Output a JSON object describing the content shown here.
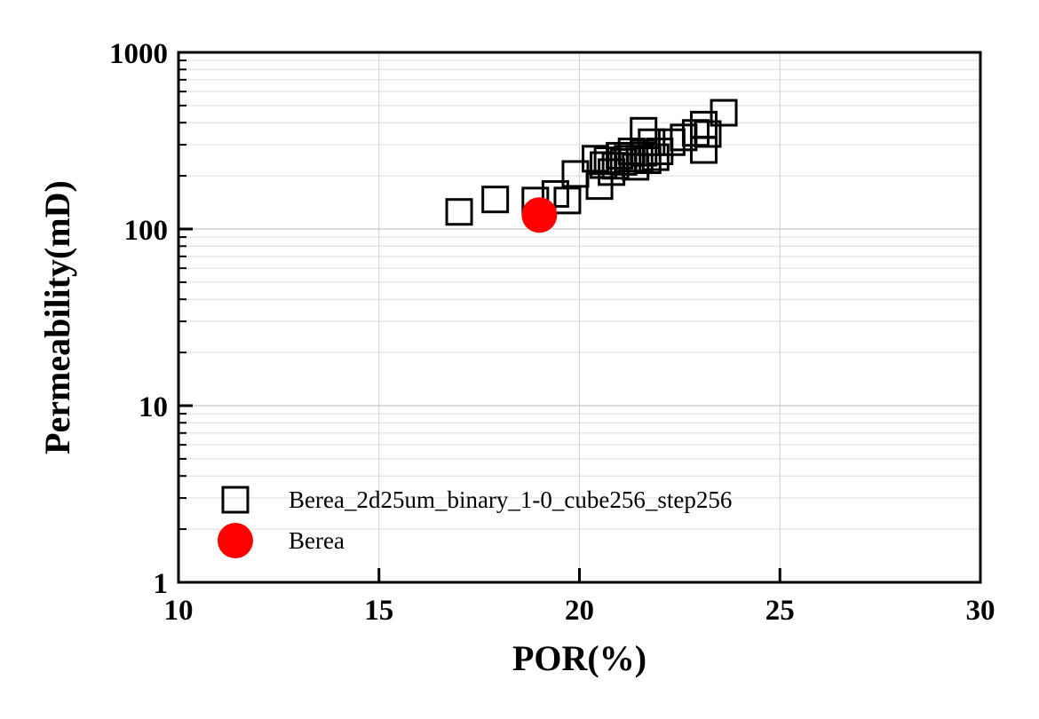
{
  "chart_data": {
    "type": "scatter",
    "xlabel": "POR(%)",
    "ylabel": "Permeability(mD)",
    "xlim": [
      10,
      30
    ],
    "ylim": [
      1,
      1000
    ],
    "y_scale": "log",
    "x_ticks": [
      "10",
      "15",
      "20",
      "25",
      "30"
    ],
    "y_ticks": [
      "1",
      "10",
      "100",
      "1000"
    ],
    "grid": true,
    "legend_position": "lower-left",
    "series": [
      {
        "name": "Berea_2d25um_binary_1-0_cube256_step256",
        "marker": "open-square",
        "color": "#000000",
        "points": [
          {
            "x": 17.0,
            "y": 125
          },
          {
            "x": 17.9,
            "y": 147
          },
          {
            "x": 18.9,
            "y": 145
          },
          {
            "x": 19.4,
            "y": 158
          },
          {
            "x": 19.7,
            "y": 145
          },
          {
            "x": 19.9,
            "y": 205
          },
          {
            "x": 20.4,
            "y": 250
          },
          {
            "x": 20.5,
            "y": 175
          },
          {
            "x": 20.6,
            "y": 230
          },
          {
            "x": 20.7,
            "y": 245
          },
          {
            "x": 20.8,
            "y": 210
          },
          {
            "x": 20.9,
            "y": 228
          },
          {
            "x": 21.0,
            "y": 260
          },
          {
            "x": 21.1,
            "y": 240
          },
          {
            "x": 21.2,
            "y": 250
          },
          {
            "x": 21.3,
            "y": 275
          },
          {
            "x": 21.4,
            "y": 225
          },
          {
            "x": 21.5,
            "y": 250
          },
          {
            "x": 21.6,
            "y": 270
          },
          {
            "x": 21.6,
            "y": 360
          },
          {
            "x": 21.7,
            "y": 245
          },
          {
            "x": 21.8,
            "y": 310
          },
          {
            "x": 21.9,
            "y": 255
          },
          {
            "x": 22.0,
            "y": 275
          },
          {
            "x": 22.3,
            "y": 310
          },
          {
            "x": 22.6,
            "y": 330
          },
          {
            "x": 22.9,
            "y": 350
          },
          {
            "x": 23.1,
            "y": 280
          },
          {
            "x": 23.1,
            "y": 390
          },
          {
            "x": 23.2,
            "y": 345
          },
          {
            "x": 23.6,
            "y": 455
          }
        ]
      },
      {
        "name": "Berea",
        "marker": "filled-circle",
        "color": "#ff0000",
        "points": [
          {
            "x": 19.0,
            "y": 120
          }
        ]
      }
    ]
  }
}
